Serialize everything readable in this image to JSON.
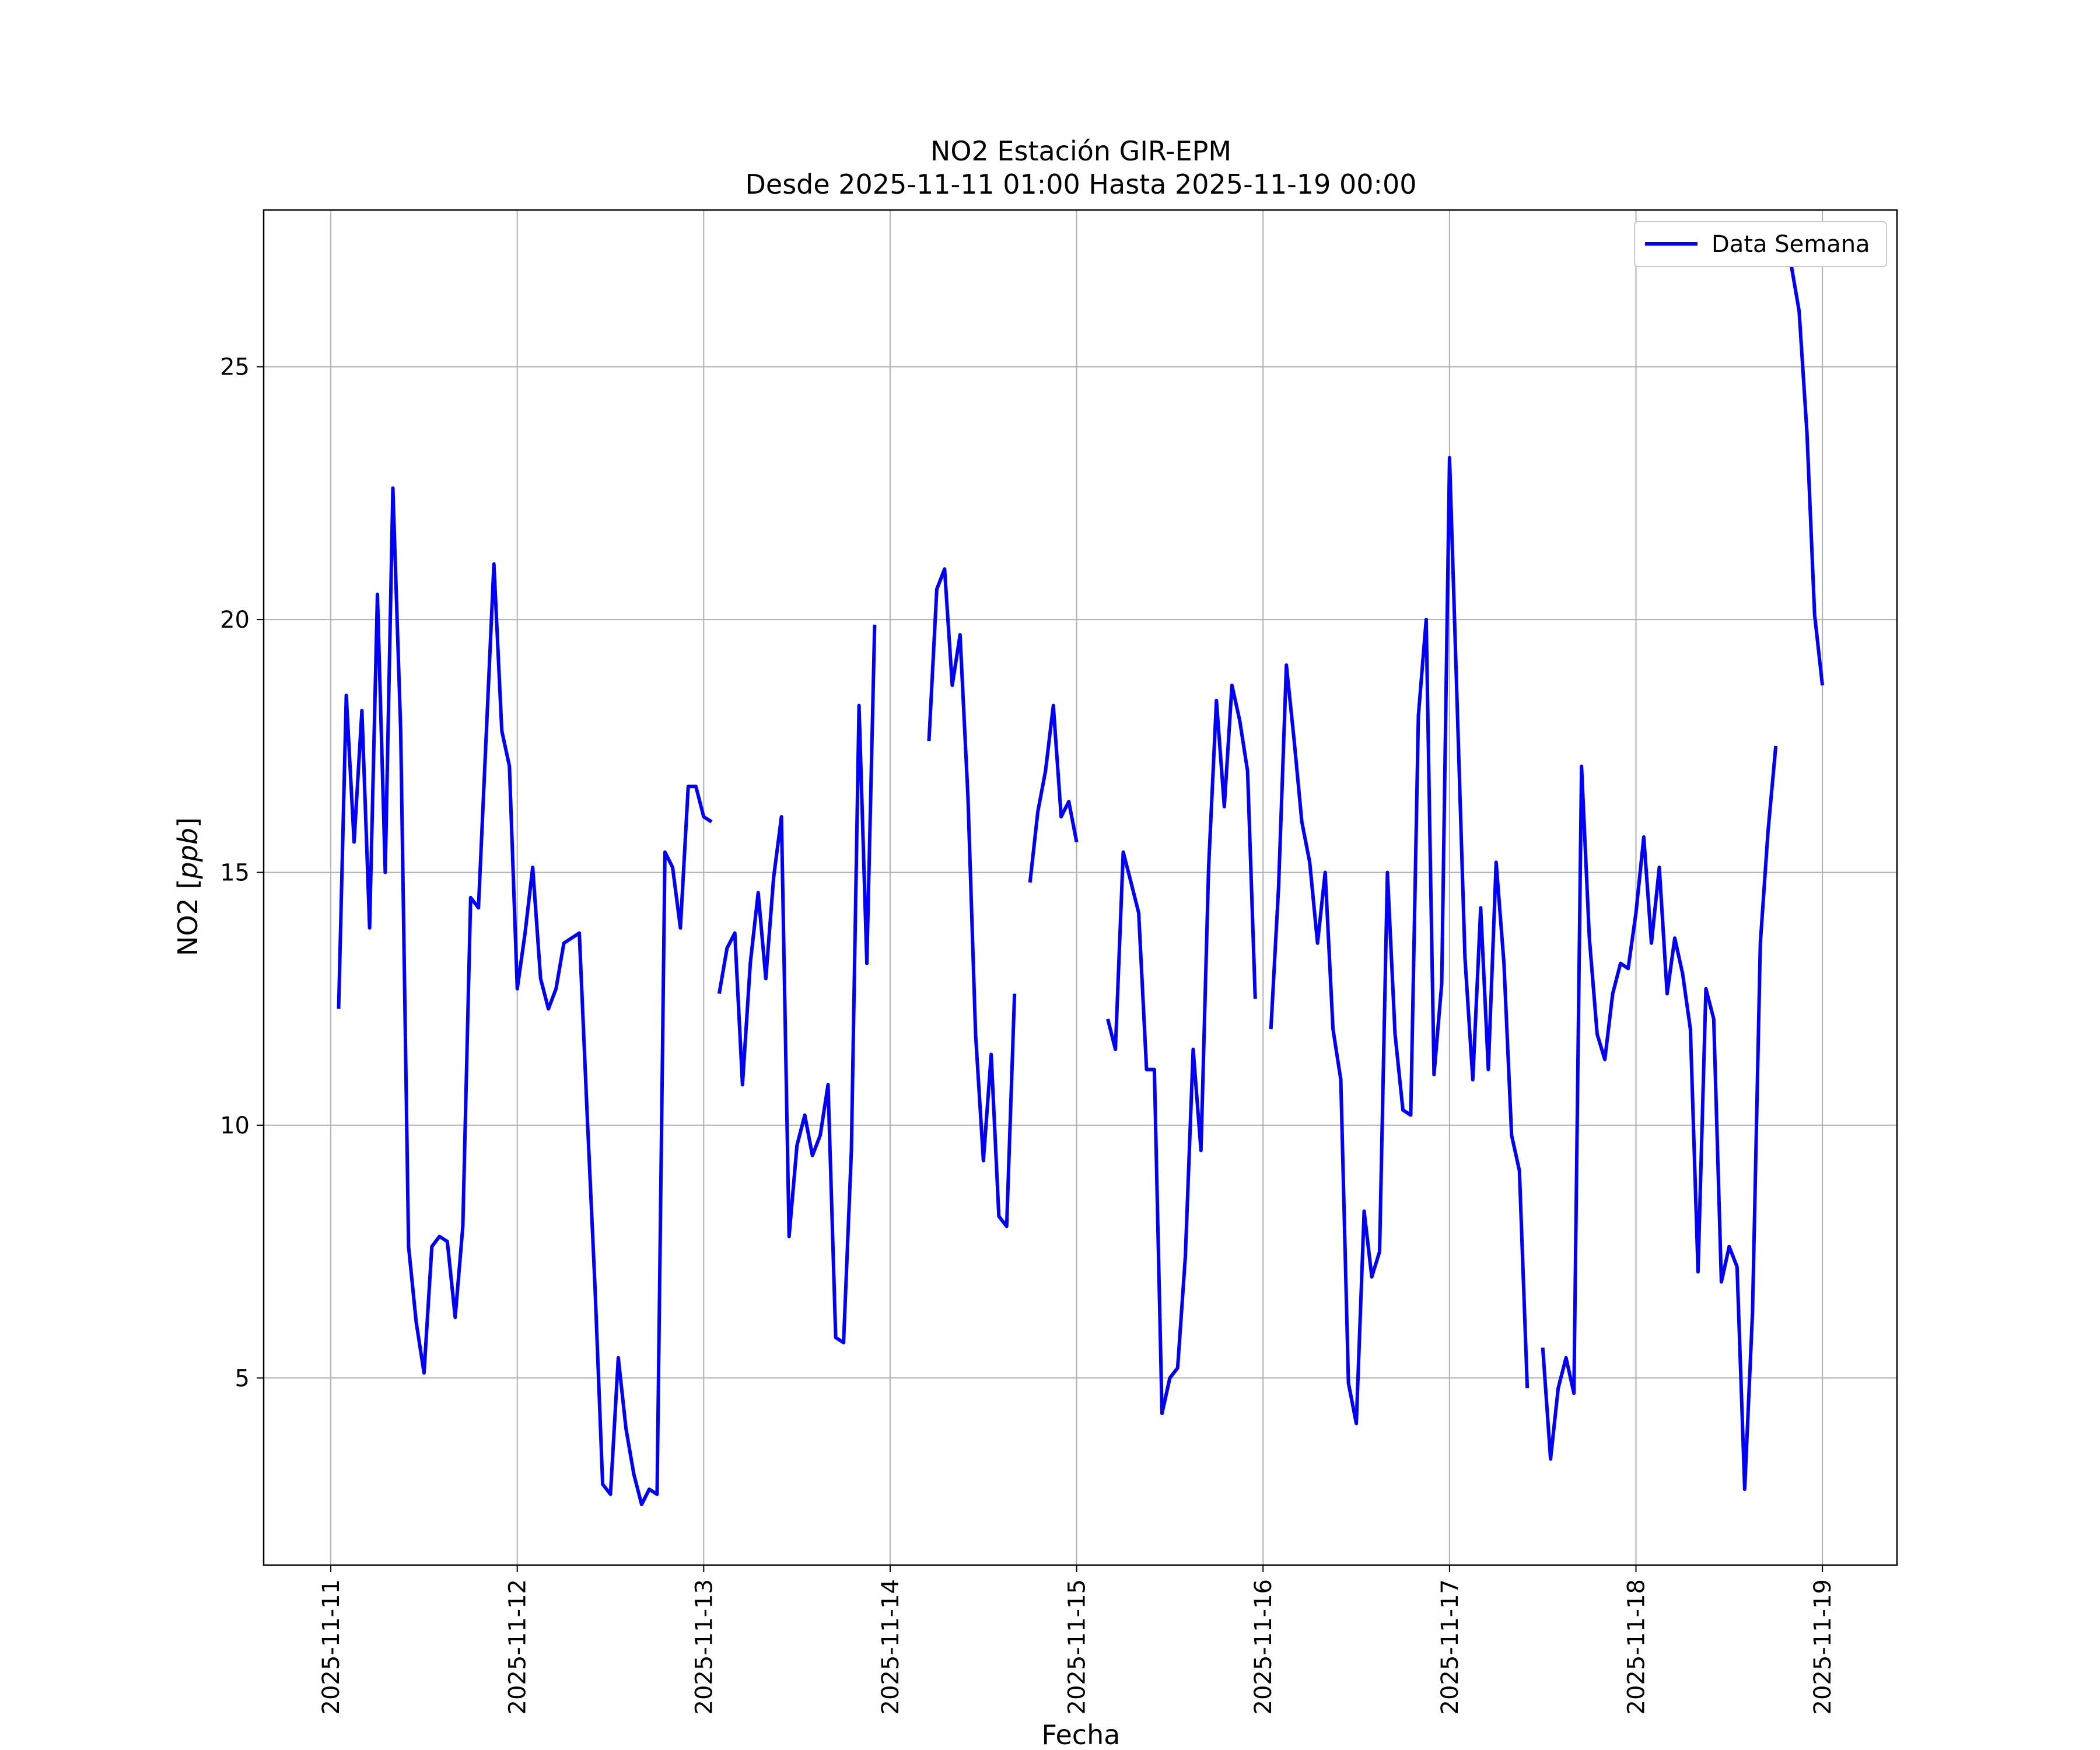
{
  "chart_data": {
    "type": "line",
    "title": "NO2 Estación GIR-EPM",
    "subtitle": "Desde 2025-11-11 01:00 Hasta 2025-11-19 00:00",
    "xlabel": "Fecha",
    "ylabel_prefix": "NO2 [",
    "ylabel_unit": "ppb",
    "ylabel_suffix": "]",
    "xlim_days": [
      -0.36,
      8.4
    ],
    "ylim": [
      1.3,
      28.1
    ],
    "x_ticks": [
      "2025-11-11",
      "2025-11-12",
      "2025-11-13",
      "2025-11-14",
      "2025-11-15",
      "2025-11-16",
      "2025-11-17",
      "2025-11-18",
      "2025-11-19"
    ],
    "y_ticks": [
      5,
      10,
      15,
      20,
      25
    ],
    "grid": true,
    "legend_position": "top-right",
    "series": [
      {
        "name": "Data Semana",
        "color": "#0000ff",
        "x_unit": "days since 2025-11-11 00:00",
        "points": [
          [
            0.042,
            12.3
          ],
          [
            0.083,
            18.5
          ],
          [
            0.125,
            15.6
          ],
          [
            0.167,
            18.2
          ],
          [
            0.208,
            13.9
          ],
          [
            0.25,
            20.5
          ],
          [
            0.292,
            15.0
          ],
          [
            0.333,
            22.6
          ],
          [
            0.375,
            17.8
          ],
          [
            0.417,
            7.6
          ],
          [
            0.458,
            6.1
          ],
          [
            0.5,
            5.1
          ],
          [
            0.542,
            7.6
          ],
          [
            0.583,
            7.8
          ],
          [
            0.625,
            7.7
          ],
          [
            0.667,
            6.2
          ],
          [
            0.708,
            8.0
          ],
          [
            0.75,
            14.5
          ],
          [
            0.792,
            14.3
          ],
          [
            0.875,
            21.1
          ],
          [
            0.917,
            17.8
          ],
          [
            0.958,
            17.1
          ],
          [
            1.0,
            12.7
          ],
          [
            1.042,
            13.8
          ],
          [
            1.083,
            15.1
          ],
          [
            1.125,
            12.9
          ],
          [
            1.167,
            12.3
          ],
          [
            1.208,
            12.7
          ],
          [
            1.25,
            13.6
          ],
          [
            1.333,
            13.8
          ],
          [
            1.375,
            10.2
          ],
          [
            1.417,
            6.8
          ],
          [
            1.458,
            2.9
          ],
          [
            1.5,
            2.7
          ],
          [
            1.542,
            5.4
          ],
          [
            1.583,
            4.0
          ],
          [
            1.625,
            3.1
          ],
          [
            1.667,
            2.5
          ],
          [
            1.708,
            2.8
          ],
          [
            1.75,
            2.7
          ],
          [
            1.792,
            15.4
          ],
          [
            1.833,
            15.1
          ],
          [
            1.875,
            13.9
          ],
          [
            1.917,
            16.7
          ],
          [
            1.958,
            16.7
          ],
          [
            2.0,
            16.1
          ],
          [
            2.042,
            16.0
          ],
          null,
          [
            2.083,
            12.6
          ],
          [
            2.125,
            13.5
          ],
          [
            2.167,
            13.8
          ],
          [
            2.208,
            10.8
          ],
          [
            2.25,
            13.2
          ],
          [
            2.292,
            14.6
          ],
          [
            2.333,
            12.9
          ],
          [
            2.375,
            14.9
          ],
          [
            2.417,
            16.1
          ],
          [
            2.458,
            7.8
          ],
          [
            2.5,
            9.6
          ],
          [
            2.542,
            10.2
          ],
          [
            2.583,
            9.4
          ],
          [
            2.625,
            9.8
          ],
          [
            2.667,
            10.8
          ],
          [
            2.708,
            5.8
          ],
          [
            2.75,
            5.7
          ],
          [
            2.792,
            9.5
          ],
          [
            2.833,
            18.3
          ],
          [
            2.875,
            13.2
          ],
          [
            2.917,
            19.9
          ],
          null,
          [
            3.208,
            17.6
          ],
          [
            3.25,
            20.6
          ],
          [
            3.292,
            21.0
          ],
          [
            3.333,
            18.7
          ],
          [
            3.375,
            19.7
          ],
          [
            3.417,
            16.5
          ],
          [
            3.458,
            11.8
          ],
          [
            3.5,
            9.3
          ],
          [
            3.542,
            11.4
          ],
          [
            3.583,
            8.2
          ],
          [
            3.625,
            8.0
          ],
          [
            3.667,
            12.6
          ],
          null,
          [
            3.75,
            14.8
          ],
          [
            3.792,
            16.2
          ],
          [
            3.833,
            17.0
          ],
          [
            3.875,
            18.3
          ],
          [
            3.917,
            16.1
          ],
          [
            3.958,
            16.4
          ],
          [
            4.0,
            15.6
          ],
          null,
          [
            4.167,
            12.1
          ],
          [
            4.208,
            11.5
          ],
          [
            4.25,
            15.4
          ],
          [
            4.292,
            14.8
          ],
          [
            4.333,
            14.2
          ],
          [
            4.375,
            11.1
          ],
          [
            4.417,
            11.1
          ],
          [
            4.458,
            4.3
          ],
          [
            4.5,
            5.0
          ],
          [
            4.542,
            5.2
          ],
          [
            4.583,
            7.4
          ],
          [
            4.625,
            11.5
          ],
          [
            4.667,
            9.5
          ],
          [
            4.708,
            15.1
          ],
          [
            4.75,
            18.4
          ],
          [
            4.792,
            16.3
          ],
          [
            4.833,
            18.7
          ],
          [
            4.875,
            18.0
          ],
          [
            4.917,
            17.0
          ],
          [
            4.958,
            12.5
          ],
          null,
          [
            5.042,
            11.9
          ],
          [
            5.083,
            14.7
          ],
          [
            5.125,
            19.1
          ],
          [
            5.167,
            17.6
          ],
          [
            5.208,
            16.0
          ],
          [
            5.25,
            15.2
          ],
          [
            5.292,
            13.6
          ],
          [
            5.333,
            15.0
          ],
          [
            5.375,
            11.9
          ],
          [
            5.417,
            10.9
          ],
          [
            5.458,
            4.9
          ],
          [
            5.5,
            4.1
          ],
          [
            5.542,
            8.3
          ],
          [
            5.583,
            7.0
          ],
          [
            5.625,
            7.5
          ],
          [
            5.667,
            15.0
          ],
          [
            5.708,
            11.8
          ],
          [
            5.75,
            10.3
          ],
          [
            5.792,
            10.2
          ],
          [
            5.833,
            18.1
          ],
          [
            5.875,
            20.0
          ],
          [
            5.917,
            11.0
          ],
          [
            5.958,
            12.8
          ],
          [
            6.0,
            23.2
          ],
          [
            6.042,
            18.2
          ],
          [
            6.083,
            13.3
          ],
          [
            6.125,
            10.9
          ],
          [
            6.167,
            14.3
          ],
          [
            6.208,
            11.1
          ],
          [
            6.25,
            15.2
          ],
          [
            6.292,
            13.2
          ],
          [
            6.333,
            9.8
          ],
          [
            6.375,
            9.1
          ],
          [
            6.417,
            4.8
          ],
          null,
          [
            6.5,
            5.6
          ],
          [
            6.542,
            3.4
          ],
          [
            6.583,
            4.8
          ],
          [
            6.625,
            5.4
          ],
          [
            6.667,
            4.7
          ],
          [
            6.708,
            17.1
          ],
          [
            6.75,
            13.7
          ],
          [
            6.792,
            11.8
          ],
          [
            6.833,
            11.3
          ],
          [
            6.875,
            12.6
          ],
          [
            6.917,
            13.2
          ],
          [
            6.958,
            13.1
          ],
          [
            7.0,
            14.2
          ],
          [
            7.042,
            15.7
          ],
          [
            7.083,
            13.6
          ],
          [
            7.125,
            15.1
          ],
          [
            7.167,
            12.6
          ],
          [
            7.208,
            13.7
          ],
          [
            7.25,
            13.0
          ],
          [
            7.292,
            11.9
          ],
          [
            7.333,
            7.1
          ],
          [
            7.375,
            12.7
          ],
          [
            7.417,
            12.1
          ],
          [
            7.458,
            6.9
          ],
          [
            7.5,
            7.6
          ],
          [
            7.542,
            7.2
          ],
          [
            7.583,
            2.8
          ],
          [
            7.625,
            6.3
          ],
          [
            7.667,
            13.6
          ],
          [
            7.708,
            15.8
          ],
          [
            7.75,
            17.5
          ],
          null,
          [
            7.833,
            27.0
          ],
          [
            7.875,
            26.1
          ],
          [
            7.917,
            23.7
          ],
          [
            7.958,
            20.1
          ],
          [
            8.0,
            18.7
          ]
        ]
      }
    ]
  }
}
